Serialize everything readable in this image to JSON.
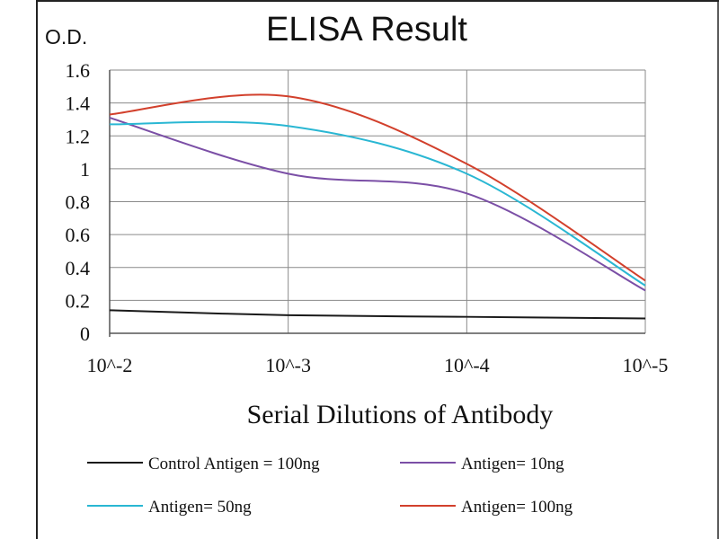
{
  "chart_data": {
    "type": "line",
    "title": "ELISA Result",
    "ylabel": "O.D.",
    "xlabel": "Serial Dilutions of Antibody",
    "categories": [
      "10^-2",
      "10^-3",
      "10^-4",
      "10^-5"
    ],
    "ylim": [
      0,
      1.6
    ],
    "yticks": [
      "0",
      "0.2",
      "0.4",
      "0.6",
      "0.8",
      "1",
      "1.2",
      "1.4",
      "1.6"
    ],
    "grid": true,
    "legend_position": "bottom",
    "series": [
      {
        "name": "Control Antigen = 100ng",
        "color": "#1a1a1a",
        "values": [
          0.14,
          0.11,
          0.1,
          0.09
        ]
      },
      {
        "name": "Antigen= 10ng",
        "color": "#7b4fa6",
        "values": [
          1.31,
          0.97,
          0.85,
          0.26
        ]
      },
      {
        "name": "Antigen= 50ng",
        "color": "#2ab7d3",
        "values": [
          1.27,
          1.26,
          0.97,
          0.29
        ]
      },
      {
        "name": "Antigen= 100ng",
        "color": "#d2402c",
        "values": [
          1.33,
          1.44,
          1.03,
          0.32
        ]
      }
    ]
  }
}
